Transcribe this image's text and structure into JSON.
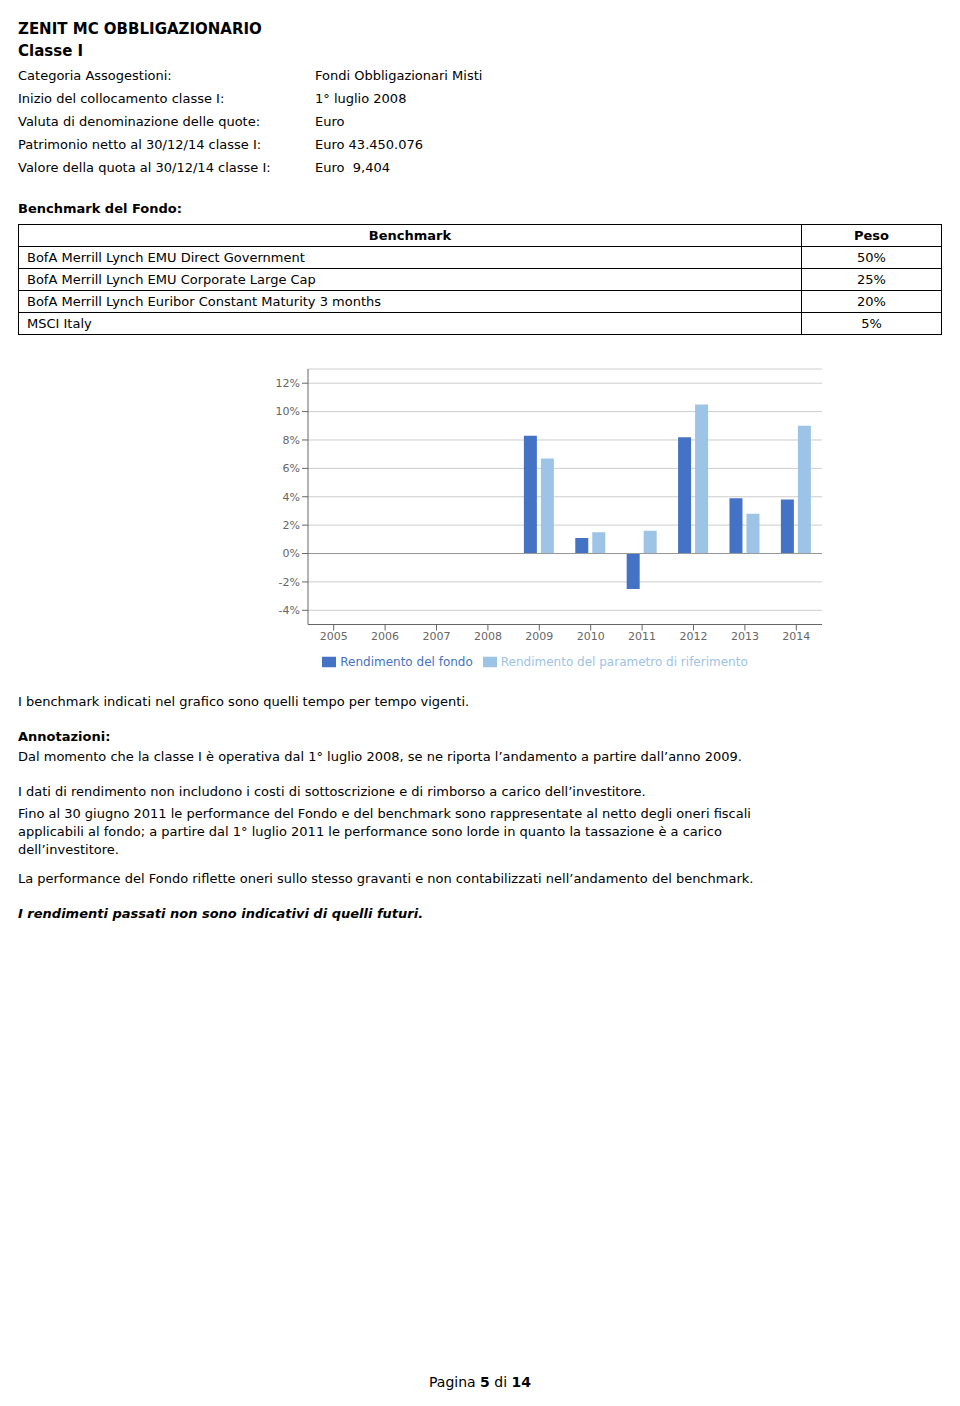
{
  "title": "ZENIT MC OBBLIGAZIONARIO",
  "subtitle": "Classe I",
  "annotations": [
    "Categoria Assogestioni:",
    "Fondi Obbligazionari Misti",
    "Inizio del collocamento classe I:",
    "1° luglio 2008",
    "Valuta di denominazione delle quote:",
    "Euro",
    "Patrimonio netto al 30/12/14 classe I:",
    "Euro 43.450.076",
    "Valore della quota al 30/12/14 classe I:",
    "Euro  9,404",
    "Benchmark del Fondo:",
    "Benchmark",
    "Peso",
    "BofA Merrill Lynch EMU Direct Government",
    "50%",
    "BofA Merrill Lynch EMU Corporate Large Cap",
    "25%",
    "BofA Merrill Lynch Euribor Constant Maturity 3 months",
    "20%",
    "MSCI Italy",
    "5%",
    "I benchmark indicati nel grafico sono quelli tempo per tempo vigenti.",
    "Annotazioni:",
    "Dal momento che la classe I è operativa dal 1° luglio 2008, se ne riporta l’andamento a partire dall’anno 2009.",
    "I dati di rendimento non includono i costi di sottoscrizione e di rimborso a carico dell’investitore.",
    "Fino al 30 giugno 2011 le performance del Fondo e del benchmark sono rappresentate al netto degli oneri fiscali",
    "applicabili al fondo; a partire dal 1° luglio 2011 le performance sono lorde in quanto la tassazione è a carico",
    "dell’investitore.",
    "La performance del Fondo riflette oneri sullo stesso gravanti e non contabilizzati nell’andamento del benchmark.",
    "I rendimenti passati non sono indicativi di quelli futuri.",
    "Pagina ",
    "5",
    " di ",
    "14"
  ],
  "chart_data": {
    "type": "bar",
    "categories": [
      "2005",
      "2006",
      "2007",
      "2008",
      "2009",
      "2010",
      "2011",
      "2012",
      "2013",
      "2014"
    ],
    "series": [
      {
        "name": "Rendimento del fondo",
        "color": "#4472C4",
        "values": [
          0.0,
          0.0,
          0.0,
          0.0,
          0.083,
          0.011,
          -0.025,
          0.082,
          0.039,
          0.038
        ]
      },
      {
        "name": "Rendimento del parametro di riferimento",
        "color": "#9DC3E6",
        "values": [
          0.0,
          0.0,
          0.0,
          0.0,
          0.067,
          0.015,
          0.016,
          0.105,
          0.028,
          0.09
        ]
      }
    ],
    "ylim": [
      -0.05,
      0.13
    ],
    "yticks": [
      {
        "value": -0.04,
        "label": "-4%"
      },
      {
        "value": -0.02,
        "label": "-2%"
      },
      {
        "value": 0.0,
        "label": "0%"
      },
      {
        "value": 0.02,
        "label": "2%"
      },
      {
        "value": 0.04,
        "label": "4%"
      },
      {
        "value": 0.06,
        "label": "6%"
      },
      {
        "value": 0.08,
        "label": "8%"
      },
      {
        "value": 0.1,
        "label": "10%"
      },
      {
        "value": 0.12,
        "label": "12%"
      }
    ],
    "grid": true,
    "legend": "bottom"
  }
}
